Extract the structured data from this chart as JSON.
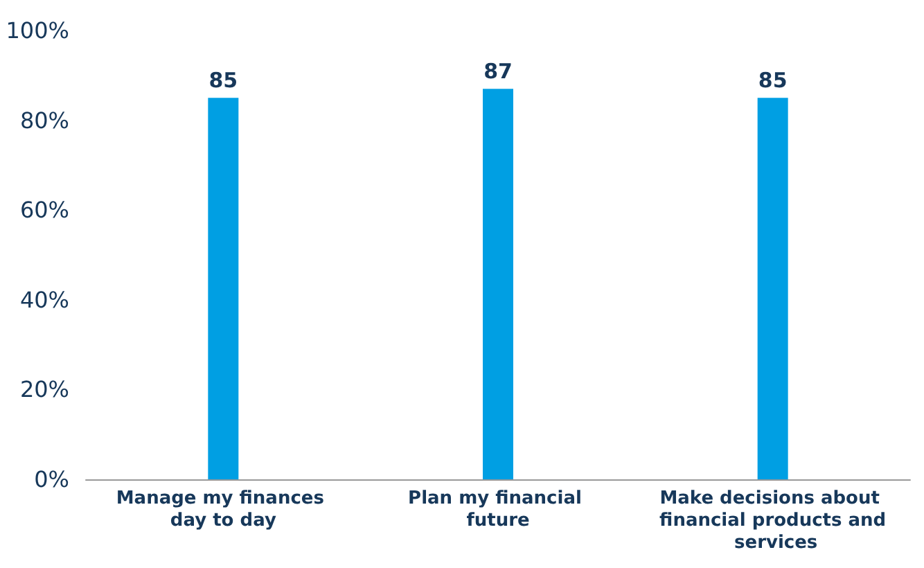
{
  "chart_data": {
    "type": "bar",
    "categories": [
      "Manage my finances day to day",
      "Plan my financial future",
      "Make decisions about financial products and services"
    ],
    "values": [
      85,
      87,
      85
    ],
    "color": "#009fe3",
    "ylim": [
      0,
      100
    ],
    "yticks": [
      {
        "value": 0,
        "label": "0%"
      },
      {
        "value": 20,
        "label": "20%"
      },
      {
        "value": 40,
        "label": "40%"
      },
      {
        "value": 60,
        "label": "60%"
      },
      {
        "value": 80,
        "label": "80%"
      },
      {
        "value": 100,
        "label": "100%"
      }
    ],
    "data_labels": true
  }
}
